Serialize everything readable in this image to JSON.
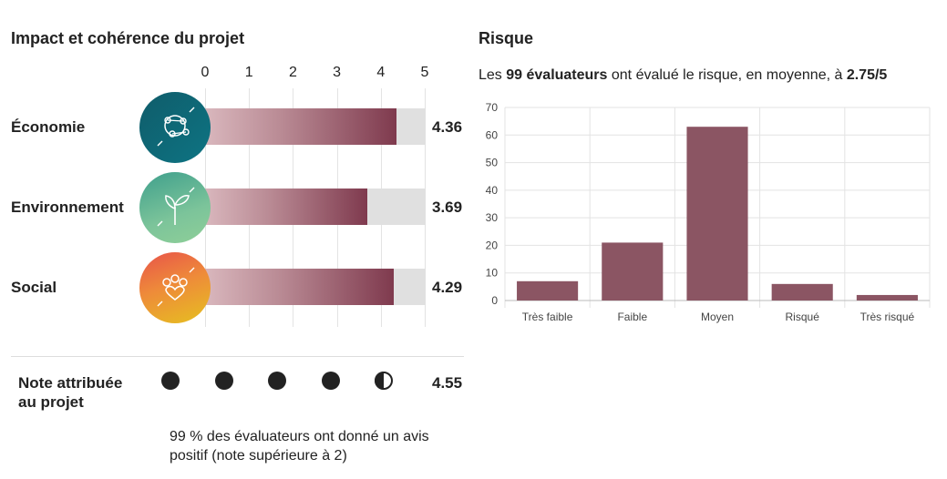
{
  "impact": {
    "title": "Impact et cohérence du projet",
    "scale_ticks": [
      "0",
      "1",
      "2",
      "3",
      "4",
      "5"
    ],
    "items": [
      {
        "label": "Économie",
        "value": 4.36,
        "display": "4.36",
        "icon": "globe-network-icon"
      },
      {
        "label": "Environnement",
        "value": 3.69,
        "display": "3.69",
        "icon": "plant-sprout-icon"
      },
      {
        "label": "Social",
        "value": 4.29,
        "display": "4.29",
        "icon": "people-heart-icon"
      }
    ],
    "max": 5
  },
  "rating": {
    "label_line1": "Note attribuée",
    "label_line2": "au projet",
    "value": 4.55,
    "display": "4.55",
    "dots_total": 5,
    "summary_line1": "99 % des évaluateurs ont donné un avis",
    "summary_line2": "positif (note supérieure à 2)"
  },
  "risk": {
    "title": "Risque",
    "subtitle_prefix": "Les ",
    "subtitle_count": "99 évaluateurs",
    "subtitle_middle": " ont évalué le risque, en moyenne, à ",
    "subtitle_avg": "2.75/5"
  },
  "colors": {
    "bar": "#8b5563",
    "track": "#e0e0e0",
    "grid": "#e3e3e3"
  },
  "chart_data": [
    {
      "type": "bar",
      "orientation": "horizontal",
      "title": "Impact et cohérence du projet",
      "categories": [
        "Économie",
        "Environnement",
        "Social"
      ],
      "values": [
        4.36,
        3.69,
        4.29
      ],
      "xlim": [
        0,
        5
      ]
    },
    {
      "type": "bar",
      "title": "Risque",
      "categories": [
        "Très faible",
        "Faible",
        "Moyen",
        "Risqué",
        "Très risqué"
      ],
      "values": [
        7,
        21,
        63,
        6,
        2
      ],
      "ylim": [
        0,
        70
      ],
      "yticks": [
        "0",
        "10",
        "20",
        "30",
        "40",
        "50",
        "60",
        "70"
      ],
      "grid": true
    }
  ]
}
